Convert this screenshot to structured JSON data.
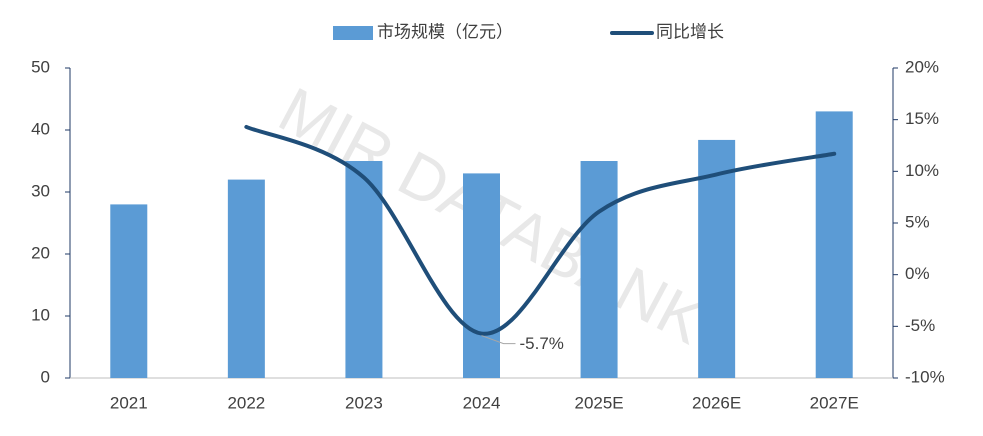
{
  "chart_data": {
    "type": "bar",
    "watermark": "MIR DATABANK",
    "categories": [
      "2021",
      "2022",
      "2023",
      "2024",
      "2025E",
      "2026E",
      "2027E"
    ],
    "series": [
      {
        "name": "市场规模（亿元）",
        "type": "bar",
        "color": "#5b9bd5",
        "values": [
          28,
          32,
          35,
          33,
          35,
          38.4,
          43
        ]
      },
      {
        "name": "同比增长",
        "type": "line",
        "axis": "y2",
        "color": "#1f4e79",
        "values": [
          null,
          14.3,
          9.4,
          -5.7,
          6.1,
          9.7,
          11.7
        ],
        "value_labels": [
          null,
          null,
          null,
          "-5.7%",
          null,
          null,
          null
        ]
      }
    ],
    "ylim": [
      0,
      50
    ],
    "yticks": [
      0,
      10,
      20,
      30,
      40,
      50
    ],
    "y2lim": [
      -10,
      20
    ],
    "y2ticks": [
      {
        "value": -10,
        "label": "-10%"
      },
      {
        "value": -5,
        "label": "-5%"
      },
      {
        "value": 0,
        "label": "0%"
      },
      {
        "value": 5,
        "label": "5%"
      },
      {
        "value": 10,
        "label": "10%"
      },
      {
        "value": 15,
        "label": "15%"
      },
      {
        "value": 20,
        "label": "20%"
      }
    ],
    "legend": "top",
    "grid": false
  }
}
